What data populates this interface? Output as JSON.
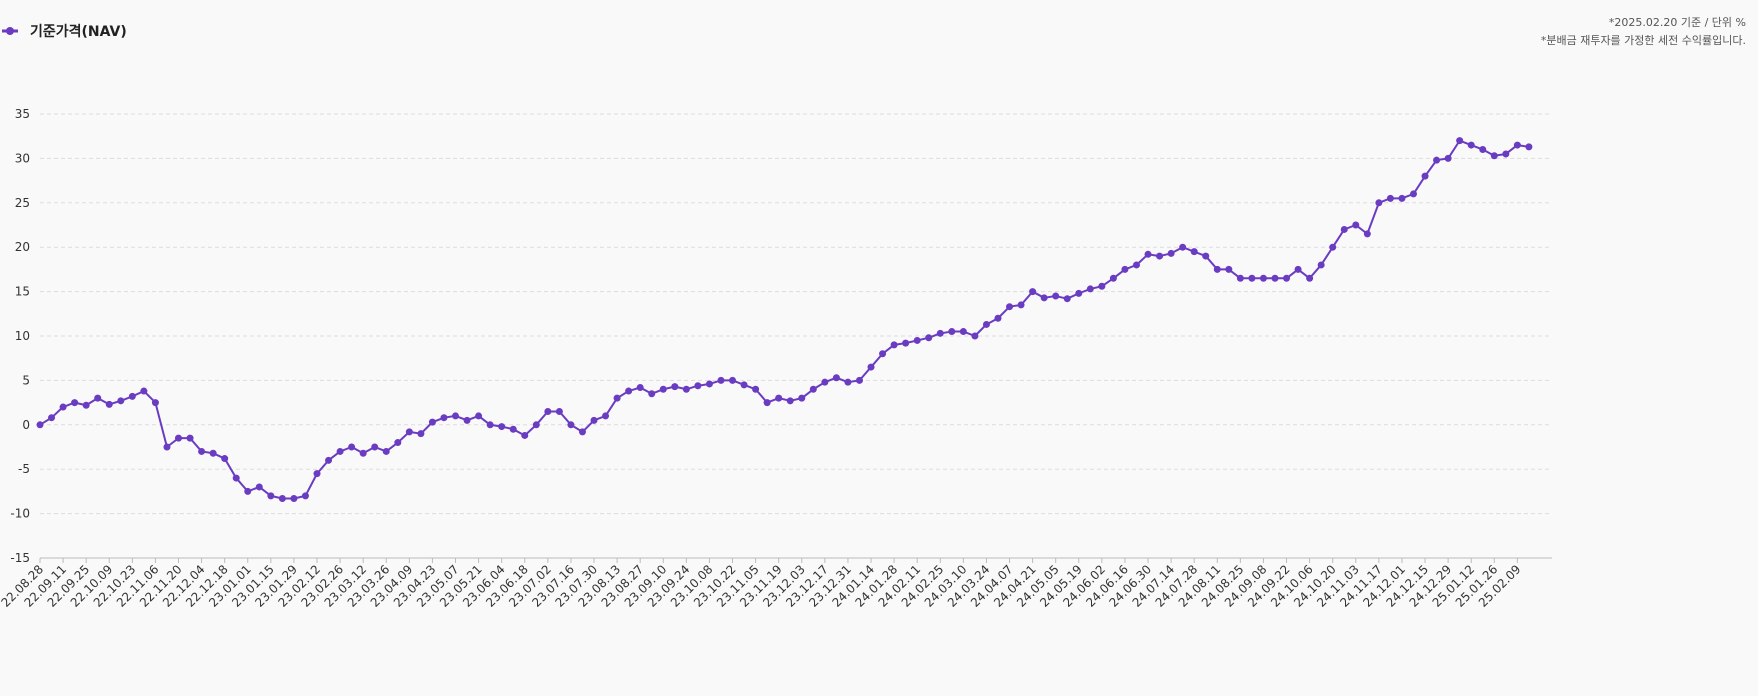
{
  "chart_data": {
    "type": "line",
    "legend": "기준가격(NAV)",
    "notes": [
      "*2025.02.20 기준 / 단위 %",
      "*분배금 재투자를 가정한 세전 수익률입니다."
    ],
    "color": "#6a3cc2",
    "grid": true,
    "ylim": [
      -15,
      35
    ],
    "yticks": [
      -15,
      -10,
      -5,
      0,
      5,
      10,
      15,
      20,
      25,
      30,
      35
    ],
    "categories": [
      "22.08.28",
      null,
      "22.09.11",
      null,
      "22.09.25",
      null,
      "22.10.09",
      null,
      "22.10.23",
      null,
      "22.11.06",
      null,
      "22.11.20",
      null,
      "22.12.04",
      null,
      "22.12.18",
      null,
      "23.01.01",
      null,
      "23.01.15",
      null,
      "23.01.29",
      null,
      "23.02.12",
      null,
      "23.02.26",
      null,
      "23.03.12",
      null,
      "23.03.26",
      null,
      "23.04.09",
      null,
      "23.04.23",
      null,
      "23.05.07",
      null,
      "23.05.21",
      null,
      "23.06.04",
      null,
      "23.06.18",
      null,
      "23.07.02",
      null,
      "23.07.16",
      null,
      "23.07.30",
      null,
      "23.08.13",
      null,
      "23.08.27",
      null,
      "23.09.10",
      null,
      "23.09.24",
      null,
      "23.10.08",
      null,
      "23.10.22",
      null,
      "23.11.05",
      null,
      "23.11.19",
      null,
      "23.12.03",
      null,
      "23.12.17",
      null,
      "23.12.31",
      null,
      "24.01.14",
      null,
      "24.01.28",
      null,
      "24.02.11",
      null,
      "24.02.25",
      null,
      "24.03.10",
      null,
      "24.03.24",
      null,
      "24.04.07",
      null,
      "24.04.21",
      null,
      "24.05.05",
      null,
      "24.05.19",
      null,
      "24.06.02",
      null,
      "24.06.16",
      null,
      "24.06.30",
      null,
      "24.07.14",
      null,
      "24.07.28",
      null,
      "24.08.11",
      null,
      "24.08.25",
      null,
      "24.09.08",
      null,
      "24.09.22",
      null,
      "24.10.06",
      null,
      "24.10.20",
      null,
      "24.11.03",
      null,
      "24.11.17",
      null,
      "24.12.01",
      null,
      "24.12.15",
      null,
      "24.12.29",
      null,
      "25.01.12",
      null,
      "25.01.26",
      null,
      "25.02.09",
      null
    ],
    "values": [
      0,
      0.8,
      2,
      2.5,
      2.2,
      3,
      2.3,
      2.7,
      3.2,
      3.8,
      2.5,
      -2.5,
      -1.5,
      -1.5,
      -3,
      -3.2,
      -3.8,
      -6,
      -7.5,
      -7,
      -8,
      -8.3,
      -8.3,
      -8,
      -5.5,
      -4,
      -3,
      -2.5,
      -3.2,
      -2.5,
      -3,
      -2,
      -0.8,
      -1,
      0.3,
      0.8,
      1,
      0.5,
      1,
      0,
      -0.2,
      -0.5,
      -1.2,
      0,
      1.5,
      1.5,
      0,
      -0.8,
      0.5,
      1,
      3,
      3.8,
      4.2,
      3.5,
      4,
      4.3,
      4,
      4.4,
      4.6,
      5,
      5,
      4.5,
      4,
      2.5,
      3,
      2.7,
      3,
      4,
      4.8,
      5.3,
      4.8,
      5,
      6.5,
      8,
      9,
      9.2,
      9.5,
      9.8,
      10.3,
      10.5,
      10.5,
      10,
      11.3,
      12,
      13.3,
      13.5,
      15,
      14.3,
      14.5,
      14.2,
      14.8,
      15.3,
      15.6,
      16.5,
      17.5,
      18,
      19.2,
      19,
      19.3,
      20,
      19.5,
      19,
      17.5,
      17.5,
      16.5,
      16.5,
      16.5,
      16.5,
      16.5,
      17.5,
      16.5,
      18,
      20,
      22,
      22.5,
      21.5,
      25,
      25.5,
      25.5,
      26,
      28,
      29.8,
      30,
      32,
      31.5,
      31,
      30.3,
      30.5,
      31.5,
      31.3
    ]
  }
}
